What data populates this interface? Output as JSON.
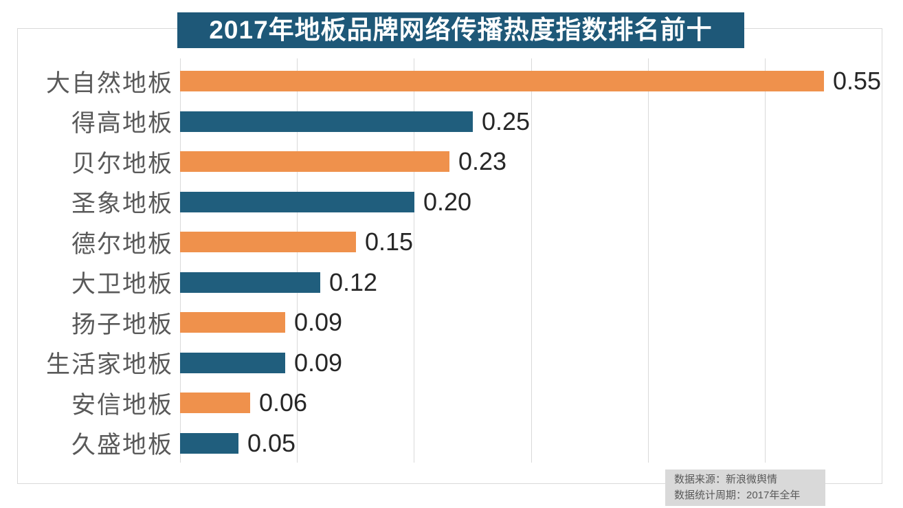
{
  "chart_data": {
    "type": "bar",
    "orientation": "horizontal",
    "title": "2017年地板品牌网络传播热度指数排名前十",
    "categories": [
      "大自然地板",
      "得高地板",
      "贝尔地板",
      "圣象地板",
      "德尔地板",
      "大卫地板",
      "扬子地板",
      "生活家地板",
      "安信地板",
      "久盛地板"
    ],
    "values": [
      0.55,
      0.25,
      0.23,
      0.2,
      0.15,
      0.12,
      0.09,
      0.09,
      0.06,
      0.05
    ],
    "value_labels": [
      "0.55",
      "0.25",
      "0.23",
      "0.20",
      "0.15",
      "0.12",
      "0.09",
      "0.09",
      "0.06",
      "0.05"
    ],
    "bar_colors": [
      "#ef914c",
      "#205e7d",
      "#ef914c",
      "#205e7d",
      "#ef914c",
      "#205e7d",
      "#ef914c",
      "#205e7d",
      "#ef914c",
      "#205e7d"
    ],
    "xlabel": "",
    "ylabel": "",
    "xlim": [
      0,
      0.6
    ],
    "grid_interval": 0.1,
    "grid": true,
    "tick_labels_shown": false,
    "legend": "none",
    "value_labels_position": "end-of-bar"
  },
  "footer": {
    "source_line1": "数据来源：新浪微舆情",
    "source_line2": "数据统计周期：2017年全年"
  },
  "colors": {
    "background": "#ffffff",
    "title_bg": "#1e5878",
    "title_text": "#ffffff",
    "bar_orange": "#ef914c",
    "bar_blue": "#205e7d",
    "category_text": "#595959",
    "value_text": "#262626",
    "gridline": "#d9d9d9",
    "border": "#d9d9d9",
    "note_bg": "#d9d9d9",
    "note_text": "#595959"
  }
}
